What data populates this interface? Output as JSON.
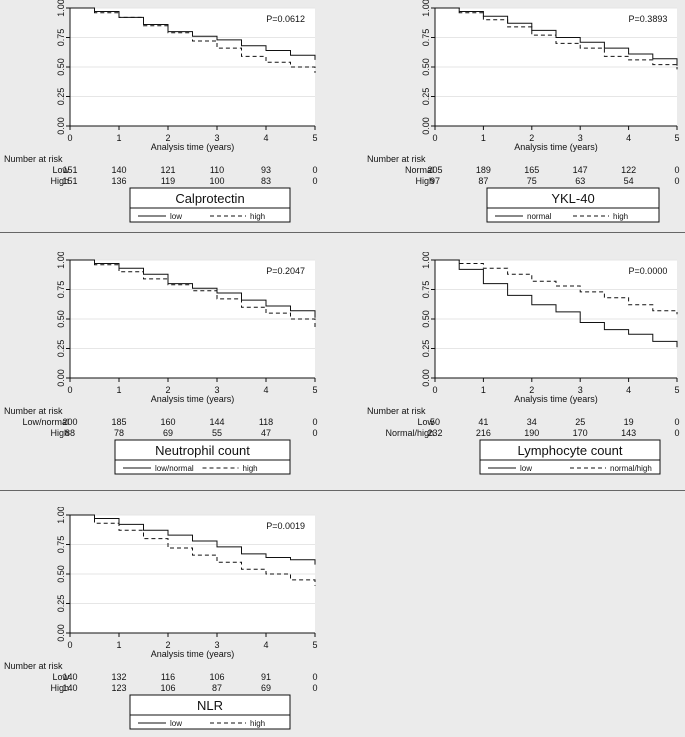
{
  "colors": {
    "background": "#ebebeb",
    "plot_bg": "#ffffff",
    "line": "#111111",
    "gridline": "#e6e6e6"
  },
  "common": {
    "xlabel": "Analysis time (years)",
    "x_ticks": [
      "0",
      "1",
      "2",
      "3",
      "4",
      "5"
    ],
    "y_ticks": [
      "0.00",
      "0.25",
      "0.50",
      "0.75",
      "1.00"
    ],
    "risk_header": "Number at risk"
  },
  "chart_data": [
    {
      "type": "line",
      "title": "Calprotectin",
      "xlabel": "Analysis time (years)",
      "ylim": [
        0,
        1
      ],
      "xlim": [
        0,
        5
      ],
      "pvalue": "P=0.0612",
      "x": [
        0,
        0.5,
        1,
        1.5,
        2,
        2.5,
        3,
        3.5,
        4,
        4.5,
        5
      ],
      "series": [
        {
          "name": "low",
          "legend": "low",
          "style": "solid",
          "values": [
            1.0,
            0.97,
            0.92,
            0.86,
            0.8,
            0.76,
            0.73,
            0.68,
            0.64,
            0.6,
            0.56
          ]
        },
        {
          "name": "high",
          "legend": "high",
          "style": "dashed",
          "values": [
            1.0,
            0.96,
            0.92,
            0.85,
            0.79,
            0.72,
            0.66,
            0.59,
            0.54,
            0.5,
            0.45
          ]
        }
      ],
      "risk_table": [
        {
          "label": "Low",
          "counts": [
            "151",
            "140",
            "121",
            "110",
            "93",
            "0"
          ]
        },
        {
          "label": "High",
          "counts": [
            "151",
            "136",
            "119",
            "100",
            "83",
            "0"
          ]
        }
      ]
    },
    {
      "type": "line",
      "title": "YKL-40",
      "xlabel": "Analysis time (years)",
      "ylim": [
        0,
        1
      ],
      "xlim": [
        0,
        5
      ],
      "pvalue": "P=0.3893",
      "x": [
        0,
        0.5,
        1,
        1.5,
        2,
        2.5,
        3,
        3.5,
        4,
        4.5,
        5
      ],
      "series": [
        {
          "name": "normal",
          "legend": "normal",
          "style": "solid",
          "values": [
            1.0,
            0.97,
            0.93,
            0.87,
            0.81,
            0.75,
            0.71,
            0.66,
            0.61,
            0.57,
            0.51
          ]
        },
        {
          "name": "high",
          "legend": "high",
          "style": "dashed",
          "values": [
            1.0,
            0.96,
            0.9,
            0.84,
            0.77,
            0.7,
            0.66,
            0.59,
            0.56,
            0.52,
            0.48
          ]
        }
      ],
      "risk_table": [
        {
          "label": "Normal",
          "counts": [
            "205",
            "189",
            "165",
            "147",
            "122",
            "0"
          ]
        },
        {
          "label": "High",
          "counts": [
            "97",
            "87",
            "75",
            "63",
            "54",
            "0"
          ]
        }
      ]
    },
    {
      "type": "line",
      "title": "Neutrophil count",
      "xlabel": "Analysis time (years)",
      "ylim": [
        0,
        1
      ],
      "xlim": [
        0,
        5
      ],
      "pvalue": "P=0.2047",
      "x": [
        0,
        0.5,
        1,
        1.5,
        2,
        2.5,
        3,
        3.5,
        4,
        4.5,
        5
      ],
      "series": [
        {
          "name": "low/normal",
          "legend": "low/normal",
          "style": "solid",
          "values": [
            1.0,
            0.97,
            0.93,
            0.88,
            0.8,
            0.76,
            0.72,
            0.66,
            0.61,
            0.57,
            0.51
          ]
        },
        {
          "name": "high",
          "legend": "high",
          "style": "dashed",
          "values": [
            1.0,
            0.96,
            0.9,
            0.84,
            0.79,
            0.74,
            0.67,
            0.6,
            0.55,
            0.5,
            0.43
          ]
        }
      ],
      "risk_table": [
        {
          "label": "Low/normal",
          "counts": [
            "200",
            "185",
            "160",
            "144",
            "118",
            "0"
          ]
        },
        {
          "label": "High",
          "counts": [
            "88",
            "78",
            "69",
            "55",
            "47",
            "0"
          ]
        }
      ]
    },
    {
      "type": "line",
      "title": "Lymphocyte count",
      "xlabel": "Analysis time (years)",
      "ylim": [
        0,
        1
      ],
      "xlim": [
        0,
        5
      ],
      "pvalue": "P=0.0000",
      "x": [
        0,
        0.5,
        1,
        1.5,
        2,
        2.5,
        3,
        3.5,
        4,
        4.5,
        5
      ],
      "series": [
        {
          "name": "low",
          "legend": "low",
          "style": "solid",
          "values": [
            1.0,
            0.92,
            0.8,
            0.7,
            0.62,
            0.56,
            0.47,
            0.41,
            0.37,
            0.31,
            0.26
          ]
        },
        {
          "name": "normal/high",
          "legend": "normal/high",
          "style": "dashed",
          "values": [
            1.0,
            0.97,
            0.93,
            0.88,
            0.82,
            0.78,
            0.73,
            0.68,
            0.62,
            0.57,
            0.54
          ]
        }
      ],
      "risk_table": [
        {
          "label": "Low",
          "counts": [
            "50",
            "41",
            "34",
            "25",
            "19",
            "0"
          ]
        },
        {
          "label": "Normal/high",
          "counts": [
            "232",
            "216",
            "190",
            "170",
            "143",
            "0"
          ]
        }
      ]
    },
    {
      "type": "line",
      "title": "NLR",
      "xlabel": "Analysis time (years)",
      "ylim": [
        0,
        1
      ],
      "xlim": [
        0,
        5
      ],
      "pvalue": "P=0.0019",
      "x": [
        0,
        0.5,
        1,
        1.5,
        2,
        2.5,
        3,
        3.5,
        4,
        4.5,
        5
      ],
      "series": [
        {
          "name": "low",
          "legend": "low",
          "style": "solid",
          "values": [
            1.0,
            0.97,
            0.92,
            0.87,
            0.83,
            0.78,
            0.73,
            0.67,
            0.64,
            0.62,
            0.58
          ]
        },
        {
          "name": "high",
          "legend": "high",
          "style": "dashed",
          "values": [
            1.0,
            0.93,
            0.87,
            0.8,
            0.72,
            0.66,
            0.6,
            0.54,
            0.5,
            0.45,
            0.4
          ]
        }
      ],
      "risk_table": [
        {
          "label": "Low",
          "counts": [
            "140",
            "132",
            "116",
            "106",
            "91",
            "0"
          ]
        },
        {
          "label": "High",
          "counts": [
            "140",
            "123",
            "106",
            "87",
            "69",
            "0"
          ]
        }
      ]
    }
  ]
}
